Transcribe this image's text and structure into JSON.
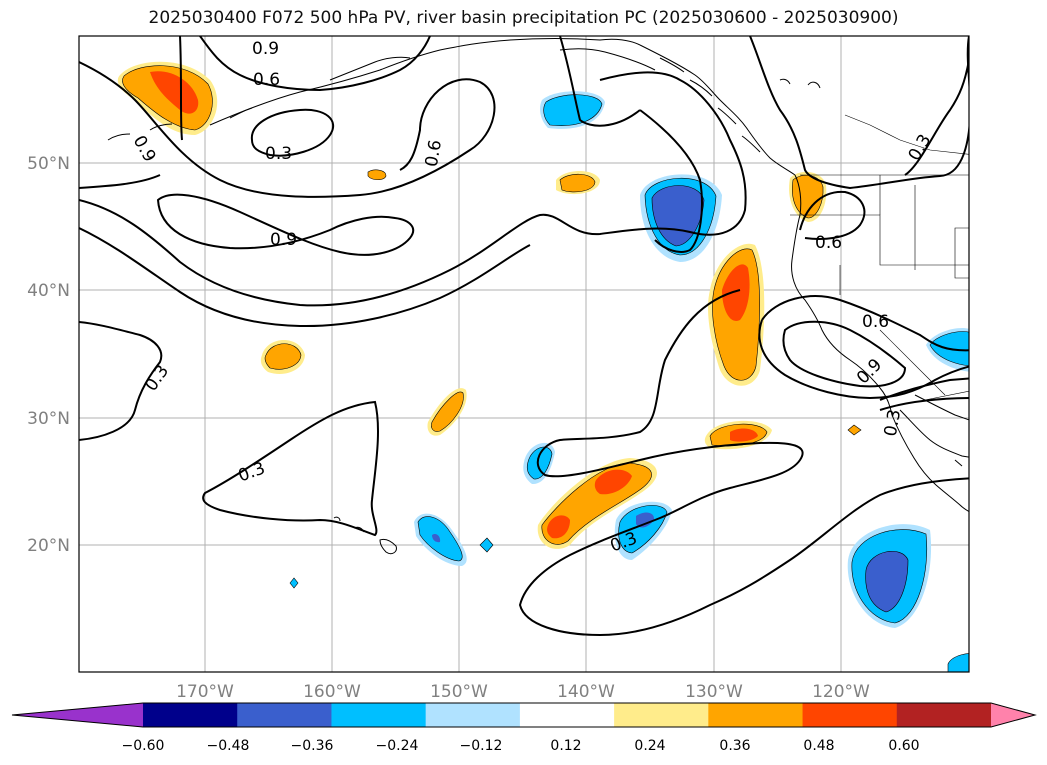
{
  "title": "2025030400 F072 500 hPa PV, river basin precipitation PC (2025030600 - 2025030900)",
  "map": {
    "lon_labels": [
      "170°W",
      "160°W",
      "150°W",
      "140°W",
      "130°W",
      "120°W"
    ],
    "lat_labels": [
      "50°N",
      "40°N",
      "30°N",
      "20°N"
    ],
    "axis_label_color": "#808080",
    "gridlines": true,
    "contour_labels": [
      "0.9",
      "0.6",
      "0.9",
      "0.3",
      "0.6",
      "0.9",
      "0.3",
      "0.3",
      "0.3",
      "0.6",
      "0.6",
      "0.9",
      "0.3",
      "0.3"
    ]
  },
  "colorbar": {
    "ticks": [
      "−0.60",
      "−0.48",
      "−0.36",
      "−0.24",
      "−0.12",
      "0.12",
      "0.24",
      "0.36",
      "0.48",
      "0.60"
    ],
    "colors": [
      "#9932cc",
      "#00008b",
      "#3a5fcd",
      "#00bfff",
      "#b0e2ff",
      "#ffffff",
      "#ffec8b",
      "#ffa500",
      "#ff4500",
      "#b22222",
      "#ff82ab"
    ],
    "extend": "both"
  }
}
